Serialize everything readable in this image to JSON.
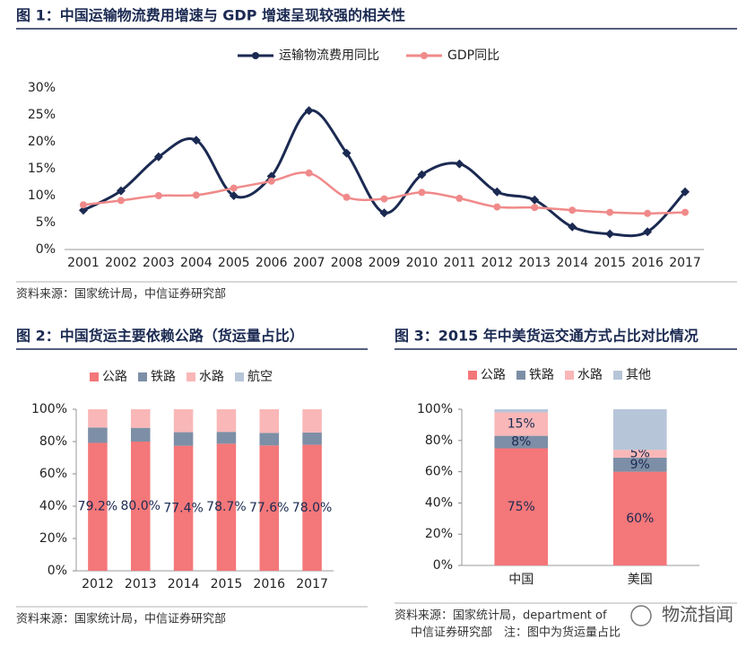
{
  "chart_data": [
    {
      "type": "line",
      "title": "图 1：中国运输物流费用增速与 GDP 增速呈现较强的相关性",
      "source": [
        "资料来源：国家统计局，中信证券研究部"
      ],
      "categories": [
        "2001",
        "2002",
        "2003",
        "2004",
        "2005",
        "2006",
        "2007",
        "2008",
        "2009",
        "2010",
        "2011",
        "2012",
        "2013",
        "2014",
        "2015",
        "2016",
        "2017"
      ],
      "series": [
        {
          "name": "运输物流费用同比",
          "color": "#1b2a52",
          "values": [
            7.3,
            10.9,
            17.2,
            20.3,
            10.0,
            13.6,
            25.8,
            17.9,
            6.8,
            13.9,
            15.9,
            10.7,
            9.2,
            4.2,
            2.9,
            3.3,
            10.7
          ]
        },
        {
          "name": "GDP同比",
          "color": "#f08a8a",
          "values": [
            8.3,
            9.1,
            10.0,
            10.1,
            11.4,
            12.7,
            14.2,
            9.7,
            9.4,
            10.6,
            9.5,
            7.9,
            7.8,
            7.3,
            6.9,
            6.7,
            6.9
          ]
        }
      ],
      "ylim": [
        0,
        30
      ],
      "yticks": [
        {
          "value": 0,
          "label": "0%"
        },
        {
          "value": 5,
          "label": "5%"
        },
        {
          "value": 10,
          "label": "10%"
        },
        {
          "value": 15,
          "label": "15%"
        },
        {
          "value": 20,
          "label": "20%"
        },
        {
          "value": 25,
          "label": "25%"
        },
        {
          "value": 30,
          "label": "30%"
        }
      ],
      "grid": false,
      "legend": "top"
    },
    {
      "type": "bar",
      "stacked": true,
      "title": "图 2：中国货运主要依赖公路（货运量占比）",
      "source": [
        "资料来源：国家统计局，中信证券研究部"
      ],
      "categories": [
        "2012",
        "2013",
        "2014",
        "2015",
        "2016",
        "2017"
      ],
      "series": [
        {
          "name": "公路",
          "color": "#f47779",
          "values": [
            79.2,
            80.0,
            77.4,
            78.7,
            77.6,
            78.0
          ],
          "value_labels": [
            "79.2%",
            "80.0%",
            "77.4%",
            "78.7%",
            "77.6%",
            "78.0%"
          ]
        },
        {
          "name": "铁路",
          "color": "#7d8fa6",
          "values": [
            9.5,
            8.5,
            8.4,
            7.3,
            7.8,
            7.6
          ]
        },
        {
          "name": "水路",
          "color": "#f9b7b7",
          "values": [
            11.3,
            11.5,
            14.2,
            14.0,
            14.6,
            14.4
          ]
        },
        {
          "name": "航空",
          "color": "#b7c5d8",
          "values": [
            0,
            0,
            0,
            0,
            0,
            0
          ]
        }
      ],
      "ylim": [
        0,
        100
      ],
      "yticks": [
        {
          "value": 0,
          "label": "0%"
        },
        {
          "value": 20,
          "label": "20%"
        },
        {
          "value": 40,
          "label": "40%"
        },
        {
          "value": 60,
          "label": "60%"
        },
        {
          "value": 80,
          "label": "80%"
        },
        {
          "value": 100,
          "label": "100%"
        }
      ],
      "grid": false,
      "legend": "top"
    },
    {
      "type": "bar",
      "stacked": true,
      "title": "图 3：2015 年中美货运交通方式占比对比情况",
      "source": [
        "资料来源：国家统计局，department of",
        "中信证券研究部　注：图中为货运量占比"
      ],
      "categories": [
        "中国",
        "美国"
      ],
      "series": [
        {
          "name": "公路",
          "color": "#f47779",
          "values": [
            75,
            60
          ],
          "value_labels": [
            "75%",
            "60%"
          ]
        },
        {
          "name": "铁路",
          "color": "#7d8fa6",
          "values": [
            8,
            9
          ],
          "value_labels": [
            "8%",
            "9%"
          ]
        },
        {
          "name": "水路",
          "color": "#f9b7b7",
          "values": [
            15,
            5
          ],
          "value_labels": [
            "15%",
            "5%"
          ]
        },
        {
          "name": "其他",
          "color": "#b7c5d8",
          "values": [
            2,
            26
          ]
        }
      ],
      "ylim": [
        0,
        100
      ],
      "yticks": [
        {
          "value": 0,
          "label": "0%"
        },
        {
          "value": 20,
          "label": "20%"
        },
        {
          "value": 40,
          "label": "40%"
        },
        {
          "value": 60,
          "label": "60%"
        },
        {
          "value": 80,
          "label": "80%"
        },
        {
          "value": 100,
          "label": "100%"
        }
      ],
      "grid": false,
      "legend": "top"
    }
  ],
  "watermark": "物流指闻"
}
